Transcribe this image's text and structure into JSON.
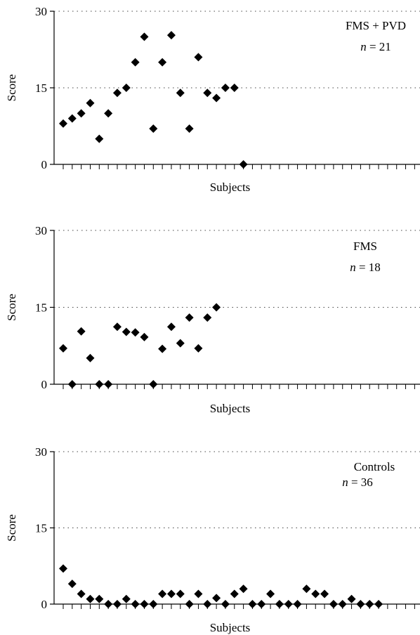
{
  "chart_data": [
    {
      "type": "scatter",
      "annotation_group": "FMS + PVD",
      "annotation_n_label": "n",
      "annotation_n_rest": " = 21",
      "xlabel": "Subjects",
      "ylabel": "Score",
      "ylim": [
        0,
        30
      ],
      "yticks": [
        "0",
        "15",
        "30"
      ],
      "x_slots": 40,
      "grid": "horizontal dotted",
      "marker": "diamond",
      "marker_color": "#000000",
      "x": [
        1,
        2,
        3,
        4,
        5,
        6,
        7,
        8,
        9,
        10,
        11,
        12,
        13,
        14,
        15,
        16,
        17,
        18,
        19,
        20,
        21
      ],
      "values": [
        8,
        9,
        10,
        12,
        5,
        10,
        14,
        15,
        20,
        25,
        7,
        20,
        25.3,
        14,
        7,
        21,
        14,
        13,
        15,
        15,
        0
      ]
    },
    {
      "type": "scatter",
      "annotation_group": "FMS",
      "annotation_n_label": "n",
      "annotation_n_rest": " = 18",
      "xlabel": "Subjects",
      "ylabel": "Score",
      "ylim": [
        0,
        30
      ],
      "yticks": [
        "0",
        "15",
        "30"
      ],
      "x_slots": 40,
      "grid": "horizontal dotted",
      "marker": "diamond",
      "marker_color": "#000000",
      "x": [
        1,
        2,
        3,
        4,
        5,
        6,
        7,
        8,
        9,
        10,
        11,
        12,
        13,
        14,
        15,
        16,
        17,
        18
      ],
      "values": [
        7,
        0,
        10.3,
        5.1,
        0,
        0,
        11.2,
        10.2,
        10.1,
        9.2,
        0,
        6.9,
        11.2,
        8,
        13,
        7,
        13,
        15
      ]
    },
    {
      "type": "scatter",
      "annotation_group": "Controls",
      "annotation_n_label": "n",
      "annotation_n_rest": " = 36",
      "xlabel": "Subjects",
      "ylabel": "Score",
      "ylim": [
        0,
        30
      ],
      "yticks": [
        "0",
        "15",
        "30"
      ],
      "x_slots": 40,
      "grid": "horizontal dotted",
      "marker": "diamond",
      "marker_color": "#000000",
      "x": [
        1,
        2,
        3,
        4,
        5,
        6,
        7,
        8,
        9,
        10,
        11,
        12,
        13,
        14,
        15,
        16,
        17,
        18,
        19,
        20,
        21,
        22,
        23,
        24,
        25,
        26,
        27,
        28,
        29,
        30,
        31,
        32,
        33,
        34,
        35,
        36
      ],
      "values": [
        7,
        4,
        2,
        1,
        1,
        0,
        0,
        1,
        0,
        0,
        0,
        2,
        2,
        2,
        0,
        2,
        0,
        1.2,
        0,
        2,
        3,
        0,
        0,
        2,
        0,
        0,
        0,
        3,
        2,
        2,
        0,
        0,
        1,
        0,
        0,
        0
      ]
    }
  ]
}
